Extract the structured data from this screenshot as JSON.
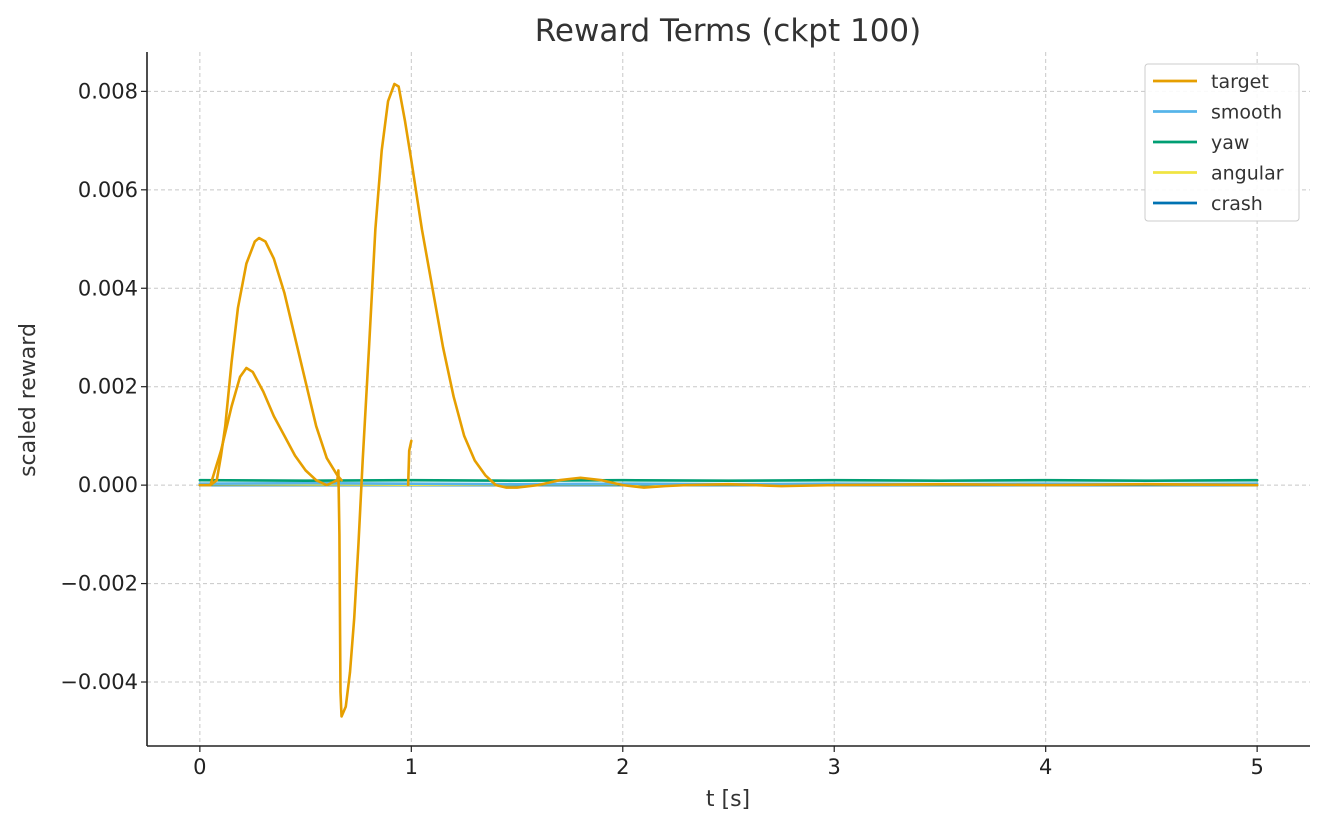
{
  "chart_data": {
    "type": "line",
    "title": "Reward Terms (ckpt 100)",
    "xlabel": "t [s]",
    "ylabel": "scaled reward",
    "xlim": [
      -0.25,
      5.25
    ],
    "ylim": [
      -0.0053,
      0.0088
    ],
    "x_ticks": [
      0,
      1,
      2,
      3,
      4,
      5
    ],
    "x_tick_labels": [
      "0",
      "1",
      "2",
      "3",
      "4",
      "5"
    ],
    "y_ticks": [
      -0.004,
      -0.002,
      0.0,
      0.002,
      0.004,
      0.006,
      0.008
    ],
    "y_tick_labels": [
      "−0.004",
      "−0.002",
      "0.000",
      "0.002",
      "0.004",
      "0.006",
      "0.008"
    ],
    "grid": true,
    "legend_position": "top-right",
    "series": [
      {
        "name": "target",
        "color": "#E69F00",
        "segments": [
          [
            [
              0.0,
              0.0
            ],
            [
              0.05,
              0.0
            ],
            [
              0.08,
              0.0001
            ],
            [
              0.1,
              0.0006
            ],
            [
              0.12,
              0.0012
            ],
            [
              0.15,
              0.0025
            ],
            [
              0.18,
              0.0036
            ],
            [
              0.22,
              0.0045
            ],
            [
              0.26,
              0.00495
            ],
            [
              0.28,
              0.00502
            ],
            [
              0.31,
              0.00495
            ],
            [
              0.35,
              0.0046
            ],
            [
              0.4,
              0.0039
            ],
            [
              0.45,
              0.003
            ],
            [
              0.5,
              0.0021
            ],
            [
              0.55,
              0.0012
            ],
            [
              0.6,
              0.00055
            ],
            [
              0.65,
              0.0002
            ],
            [
              0.67,
              0.0001
            ]
          ],
          [
            [
              0.05,
              0.0
            ],
            [
              0.1,
              0.0007
            ],
            [
              0.15,
              0.0016
            ],
            [
              0.19,
              0.0022
            ],
            [
              0.22,
              0.00238
            ],
            [
              0.25,
              0.0023
            ],
            [
              0.3,
              0.0019
            ],
            [
              0.35,
              0.0014
            ],
            [
              0.4,
              0.001
            ],
            [
              0.45,
              0.0006
            ],
            [
              0.5,
              0.0003
            ],
            [
              0.55,
              0.0001
            ],
            [
              0.6,
              0.0
            ],
            [
              0.65,
              0.0001
            ],
            [
              0.655,
              0.0003
            ],
            [
              0.66,
              -0.001
            ],
            [
              0.665,
              -0.0042
            ],
            [
              0.67,
              -0.0047
            ],
            [
              0.69,
              -0.0045
            ],
            [
              0.71,
              -0.0038
            ],
            [
              0.73,
              -0.0027
            ],
            [
              0.75,
              -0.0012
            ],
            [
              0.77,
              0.0005
            ],
            [
              0.8,
              0.0028
            ],
            [
              0.83,
              0.0052
            ],
            [
              0.86,
              0.0068
            ],
            [
              0.89,
              0.0078
            ],
            [
              0.92,
              0.00815
            ],
            [
              0.94,
              0.0081
            ],
            [
              0.97,
              0.0074
            ],
            [
              1.0,
              0.0066
            ],
            [
              1.05,
              0.0052
            ],
            [
              1.1,
              0.004
            ],
            [
              1.15,
              0.0028
            ],
            [
              1.2,
              0.0018
            ],
            [
              1.25,
              0.001
            ],
            [
              1.3,
              0.0005
            ],
            [
              1.35,
              0.0002
            ],
            [
              1.4,
              0.0
            ],
            [
              1.45,
              -5e-05
            ],
            [
              1.5,
              -5e-05
            ],
            [
              1.6,
              0.0
            ],
            [
              1.7,
              0.0001
            ],
            [
              1.8,
              0.00015
            ],
            [
              1.9,
              0.0001
            ],
            [
              2.0,
              0.0
            ],
            [
              2.1,
              -5e-05
            ],
            [
              2.2,
              -2e-05
            ],
            [
              2.3,
              0.0
            ],
            [
              2.5,
              2e-05
            ],
            [
              2.75,
              -2e-05
            ],
            [
              3.0,
              0.0
            ],
            [
              3.5,
              2e-05
            ],
            [
              4.0,
              0.0
            ],
            [
              4.5,
              2e-05
            ],
            [
              5.0,
              0.0
            ]
          ],
          [
            [
              0.985,
              0.0
            ],
            [
              0.99,
              0.0007
            ],
            [
              1.0,
              0.0009
            ]
          ]
        ]
      },
      {
        "name": "smooth",
        "color": "#56B4E9",
        "segments": [
          [
            [
              0.0,
              3e-05
            ],
            [
              0.5,
              4e-05
            ],
            [
              1.0,
              3e-05
            ],
            [
              1.5,
              2e-05
            ],
            [
              2.0,
              3e-05
            ],
            [
              2.5,
              2e-05
            ],
            [
              3.0,
              3e-05
            ],
            [
              3.5,
              2e-05
            ],
            [
              4.0,
              3e-05
            ],
            [
              4.5,
              2e-05
            ],
            [
              5.0,
              3e-05
            ]
          ]
        ]
      },
      {
        "name": "yaw",
        "color": "#009E73",
        "segments": [
          [
            [
              0.0,
              0.0001
            ],
            [
              0.5,
              9e-05
            ],
            [
              1.0,
              0.0001
            ],
            [
              1.5,
              9e-05
            ],
            [
              2.0,
              0.0001
            ],
            [
              2.5,
              9e-05
            ],
            [
              3.0,
              0.0001
            ],
            [
              3.5,
              9e-05
            ],
            [
              4.0,
              0.0001
            ],
            [
              4.5,
              9e-05
            ],
            [
              5.0,
              0.0001
            ]
          ]
        ]
      },
      {
        "name": "angular",
        "color": "#F0E442",
        "segments": [
          [
            [
              0.0,
              2e-05
            ],
            [
              1.0,
              1e-05
            ],
            [
              2.0,
              2e-05
            ],
            [
              3.0,
              1e-05
            ],
            [
              4.0,
              2e-05
            ],
            [
              5.0,
              1e-05
            ]
          ]
        ]
      },
      {
        "name": "crash",
        "color": "#0072B2",
        "segments": [
          [
            [
              0.0,
              0.0
            ],
            [
              5.0,
              0.0
            ]
          ]
        ]
      }
    ]
  }
}
